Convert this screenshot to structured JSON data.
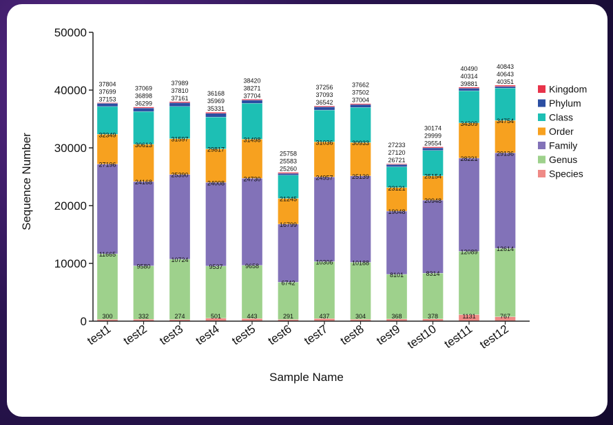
{
  "chart_data": {
    "type": "bar",
    "stacked": true,
    "title": "",
    "xlabel": "Sample Name",
    "ylabel": "Sequence Number",
    "ylim": [
      0,
      50000
    ],
    "yticks": [
      "0",
      "10000",
      "20000",
      "30000",
      "40000",
      "50000"
    ],
    "categories": [
      "test1",
      "test2",
      "test3",
      "test4",
      "test5",
      "test6",
      "test7",
      "test8",
      "test9",
      "test10",
      "test11",
      "test12"
    ],
    "legend_position": "right",
    "series": [
      {
        "name": "Kingdom",
        "color": "#e8334a",
        "cumulative": [
          37804,
          37069,
          37989,
          36168,
          38420,
          25758,
          37256,
          37662,
          27233,
          30174,
          40490,
          40843
        ]
      },
      {
        "name": "Phylum",
        "color": "#2b4ea2",
        "cumulative": [
          37699,
          36898,
          37810,
          35969,
          38271,
          25583,
          37093,
          37502,
          27120,
          29999,
          40314,
          40643
        ]
      },
      {
        "name": "Class",
        "color": "#1dbfb4",
        "cumulative": [
          37153,
          36299,
          37161,
          35331,
          37704,
          25260,
          36542,
          37004,
          26721,
          29554,
          39881,
          40351
        ]
      },
      {
        "name": "Order",
        "color": "#f7a11f",
        "cumulative": [
          32349,
          30613,
          31597,
          29817,
          31498,
          21245,
          31036,
          30933,
          23121,
          25154,
          34309,
          34754
        ]
      },
      {
        "name": "Family",
        "color": "#8272b8",
        "cumulative": [
          27196,
          24168,
          25390,
          24008,
          24730,
          16799,
          24957,
          25139,
          19048,
          20948,
          28221,
          29136
        ]
      },
      {
        "name": "Genus",
        "color": "#9ed18c",
        "cumulative": [
          11665,
          9580,
          10724,
          9537,
          9658,
          6742,
          10306,
          10188,
          8101,
          8314,
          12089,
          12614
        ]
      },
      {
        "name": "Species",
        "color": "#ef8a86",
        "cumulative": [
          300,
          332,
          274,
          501,
          443,
          291,
          437,
          304,
          368,
          378,
          1131,
          767
        ]
      }
    ]
  }
}
